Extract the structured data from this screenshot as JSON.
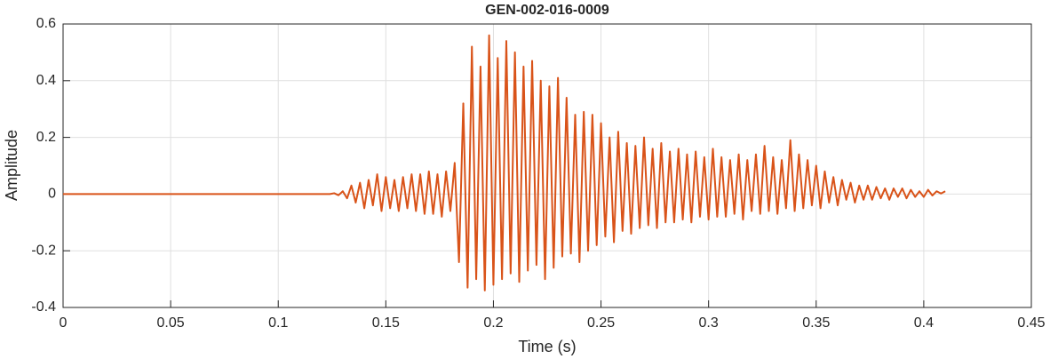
{
  "chart_data": {
    "type": "line",
    "title": "GEN-002-016-0009",
    "x_label": "Time (s)",
    "y_label": "Amplitude",
    "color": "#d95319",
    "grid": true,
    "xlim": [
      0,
      0.45
    ],
    "xticks": [
      0,
      0.05,
      0.1,
      0.15,
      0.2,
      0.25,
      0.3,
      0.35,
      0.4,
      0.45
    ],
    "ylim": [
      -0.4,
      0.6
    ],
    "yticks": [
      -0.4,
      -0.2,
      0,
      0.2,
      0.4,
      0.6
    ],
    "x": [
      0,
      0.124,
      0.126,
      0.128,
      0.13,
      0.132,
      0.134,
      0.136,
      0.138,
      0.14,
      0.142,
      0.144,
      0.146,
      0.148,
      0.15,
      0.152,
      0.154,
      0.156,
      0.158,
      0.16,
      0.162,
      0.164,
      0.166,
      0.168,
      0.17,
      0.172,
      0.174,
      0.176,
      0.178,
      0.18,
      0.182,
      0.184,
      0.186,
      0.188,
      0.19,
      0.192,
      0.194,
      0.196,
      0.198,
      0.2,
      0.202,
      0.204,
      0.206,
      0.208,
      0.21,
      0.212,
      0.214,
      0.216,
      0.218,
      0.22,
      0.222,
      0.224,
      0.226,
      0.228,
      0.23,
      0.232,
      0.234,
      0.236,
      0.238,
      0.24,
      0.242,
      0.244,
      0.246,
      0.248,
      0.25,
      0.252,
      0.254,
      0.256,
      0.258,
      0.26,
      0.262,
      0.264,
      0.266,
      0.268,
      0.27,
      0.272,
      0.274,
      0.276,
      0.278,
      0.28,
      0.282,
      0.284,
      0.286,
      0.288,
      0.29,
      0.292,
      0.294,
      0.296,
      0.298,
      0.3,
      0.302,
      0.304,
      0.306,
      0.308,
      0.31,
      0.312,
      0.314,
      0.316,
      0.318,
      0.32,
      0.322,
      0.324,
      0.326,
      0.328,
      0.33,
      0.332,
      0.334,
      0.336,
      0.338,
      0.34,
      0.342,
      0.344,
      0.346,
      0.348,
      0.35,
      0.352,
      0.354,
      0.356,
      0.358,
      0.36,
      0.362,
      0.364,
      0.366,
      0.368,
      0.37,
      0.372,
      0.374,
      0.376,
      0.378,
      0.38,
      0.382,
      0.384,
      0.386,
      0.388,
      0.39,
      0.392,
      0.394,
      0.396,
      0.398,
      0.4,
      0.402,
      0.404,
      0.406,
      0.408,
      0.41
    ],
    "values": [
      0,
      0,
      0.003,
      -0.004,
      0.01,
      -0.015,
      0.03,
      -0.03,
      0.04,
      -0.05,
      0.05,
      -0.04,
      0.07,
      -0.06,
      0.06,
      -0.05,
      0.05,
      -0.06,
      0.06,
      -0.05,
      0.07,
      -0.06,
      0.07,
      -0.07,
      0.08,
      -0.07,
      0.07,
      -0.08,
      0.08,
      -0.06,
      0.11,
      -0.24,
      0.32,
      -0.33,
      0.52,
      -0.3,
      0.45,
      -0.34,
      0.56,
      -0.32,
      0.48,
      -0.3,
      0.54,
      -0.28,
      0.5,
      -0.31,
      0.45,
      -0.27,
      0.47,
      -0.25,
      0.4,
      -0.3,
      0.38,
      -0.26,
      0.41,
      -0.22,
      0.34,
      -0.21,
      0.28,
      -0.24,
      0.29,
      -0.2,
      0.28,
      -0.18,
      0.25,
      -0.15,
      0.2,
      -0.17,
      0.22,
      -0.13,
      0.18,
      -0.14,
      0.17,
      -0.12,
      0.2,
      -0.11,
      0.16,
      -0.12,
      0.18,
      -0.1,
      0.15,
      -0.1,
      0.16,
      -0.09,
      0.14,
      -0.1,
      0.15,
      -0.08,
      0.13,
      -0.09,
      0.16,
      -0.08,
      0.13,
      -0.08,
      0.12,
      -0.07,
      0.14,
      -0.09,
      0.12,
      -0.06,
      0.14,
      -0.07,
      0.17,
      -0.06,
      0.13,
      -0.07,
      0.12,
      -0.05,
      0.19,
      -0.06,
      0.14,
      -0.05,
      0.12,
      -0.04,
      0.1,
      -0.05,
      0.08,
      -0.03,
      0.06,
      -0.04,
      0.05,
      -0.02,
      0.04,
      -0.03,
      0.03,
      -0.02,
      0.03,
      -0.02,
      0.025,
      -0.015,
      0.02,
      -0.02,
      0.02,
      -0.01,
      0.02,
      -0.015,
      0.015,
      -0.01,
      0.01,
      -0.01,
      0.015,
      -0.005,
      0.01,
      0.002,
      0.01
    ]
  }
}
